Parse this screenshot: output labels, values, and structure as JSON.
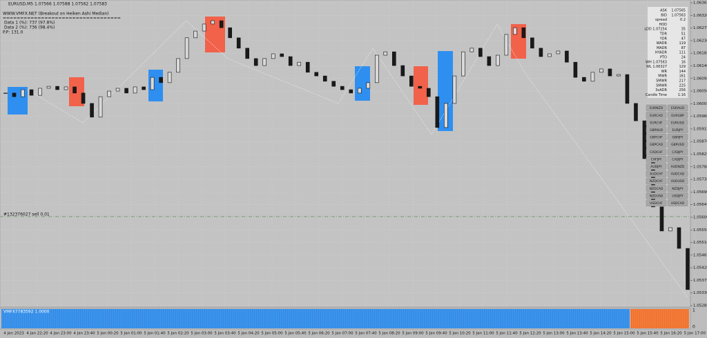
{
  "header": {
    "symbol": "EURUSD,M5 1.07566 1.07588 1.07562 1.07583",
    "indicator": "WWW.VMFX.NET (Breakout on Heiken Ashi Median)",
    "separator": "==================================",
    "data1": "Data 1 (%): 737 (97.8%)",
    "data2": "Data 2 (%): 736 (98.4%)",
    "pp": "P.P: 131.0"
  },
  "order_line": "#132376027 sell 0.01",
  "sub_window": {
    "label": "VMFX7783592 1.0000",
    "top": "1",
    "bottom": "0"
  },
  "panel": {
    "rows": [
      [
        "ASK",
        "1.07565"
      ],
      [
        "BID",
        "1.07563"
      ],
      [
        "spread",
        "0.2"
      ],
      [
        "HOD",
        ""
      ],
      [
        "LOD 1.07254",
        "35"
      ],
      [
        "TDR",
        "51"
      ],
      [
        "YDR",
        "47"
      ],
      [
        "WADR",
        "119"
      ],
      [
        "MADR",
        "87"
      ],
      [
        "HYADR",
        "111"
      ],
      [
        "PTO",
        "24"
      ],
      [
        "WH 1.07563",
        "16"
      ],
      [
        "WL 1.06327",
        "129"
      ],
      [
        "WR",
        "144"
      ],
      [
        "MWR",
        "161"
      ],
      [
        "SMWR",
        "217"
      ],
      [
        "SMWR",
        "225"
      ],
      [
        "3xADR",
        "256"
      ],
      [
        "Candle Time",
        "1:16"
      ]
    ]
  },
  "buttons": [
    [
      "EURNZD",
      "EURAUD"
    ],
    [
      "EURCAD",
      "EURGBP"
    ],
    [
      "EURCHF",
      "EURUSD"
    ],
    [
      "GBPAUD",
      "EURJPY"
    ],
    [
      "GBPCHF",
      "GBPJPY"
    ],
    [
      "GBPCAD",
      "GBPUSD"
    ],
    [
      "CADCHF",
      "CADJPY"
    ],
    [
      "CHFJPY",
      "CADJPY"
    ],
    [
      "AUDJPY",
      "AUDNZD"
    ],
    [
      "AUDCHF",
      "AUDCAD"
    ],
    [
      "NZDCHF",
      "AUDUSD"
    ],
    [
      "NZDCAD",
      "NZDJPY"
    ],
    [
      "NZDUSD",
      "USDJPY"
    ],
    [
      "USDCHF",
      "USDCAD"
    ]
  ],
  "chart_data": {
    "type": "candlestick",
    "x": [
      "4 Jan 2023",
      "4 Jan 22:20",
      "4 Jan 23:00",
      "4 Jan 23:40",
      "5 Jan 00:20",
      "5 Jan 01:00",
      "5 Jan 01:40",
      "5 Jan 02:20",
      "5 Jan 03:00",
      "5 Jan 03:40",
      "5 Jan 04:20",
      "5 Jan 05:00",
      "5 Jan 05:40",
      "5 Jan 06:20",
      "5 Jan 07:00",
      "5 Jan 07:40",
      "5 Jan 08:20",
      "5 Jan 09:00",
      "5 Jan 09:40",
      "5 Jan 10:20",
      "5 Jan 11:00",
      "5 Jan 11:40",
      "5 Jan 12:20",
      "5 Jan 13:00",
      "5 Jan 13:40",
      "5 Jan 14:20",
      "5 Jan 15:00",
      "5 Jan 15:40",
      "5 Jan 16:20",
      "5 Jan 17:00"
    ],
    "closes": [
      1.06043,
      1.0603,
      1.06055,
      1.06035,
      1.0606,
      1.06067,
      1.06055,
      1.06065,
      1.06043,
      1.06006,
      1.05957,
      1.0603,
      1.0605,
      1.0606,
      1.06043,
      1.06065,
      1.06055,
      1.06099,
      1.0608,
      1.06117,
      1.06166,
      1.0624,
      1.06264,
      1.06289,
      1.06301,
      1.06276,
      1.0624,
      1.06203,
      1.06166,
      1.06141,
      1.06166,
      1.06183,
      1.06173,
      1.06141,
      1.06153,
      1.06117,
      1.06104,
      1.06085,
      1.06067,
      1.06055,
      1.06043,
      1.0606,
      1.0608,
      1.06178,
      1.0619,
      1.06141,
      1.06104,
      1.06067,
      1.0606,
      1.0603,
      1.0592,
      1.06006,
      1.06104,
      1.0619,
      1.06203,
      1.06173,
      1.06141,
      1.06178,
      1.06252,
      1.06276,
      1.0624,
      1.06203,
      1.06173,
      1.06183,
      1.06193,
      1.06153,
      1.06099,
      1.06085,
      1.06117,
      1.06129,
      1.06104,
      1.06109,
      1.06006,
      1.05944,
      1.05809,
      1.05637,
      1.05551,
      1.05563,
      1.05489,
      1.05342
    ],
    "color_up": "#d9d9d9",
    "color_down": "#1a1a1a",
    "ylim": [
      1.05285,
      1.06365
    ],
    "yticks": [
      1.05285,
      {
        "value": 1.0533,
        "label": "1.05330"
      },
      1.05375,
      {
        "value": 1.0542,
        "label": "1.05420"
      },
      1.05465,
      {
        "value": 1.0551,
        "label": "1.05510"
      },
      1.05555,
      {
        "value": 1.056,
        "label": "1.05600"
      },
      1.05645,
      {
        "value": 1.0569,
        "label": "1.05690"
      },
      1.05735,
      {
        "value": 1.0578,
        "label": "1.05780"
      },
      1.05825,
      {
        "value": 1.0587,
        "label": "1.05870"
      },
      1.05915,
      {
        "value": 1.0596,
        "label": "1.05960"
      },
      1.06005,
      {
        "value": 1.0605,
        "label": "1.06050"
      },
      1.06095,
      {
        "value": 1.0614,
        "label": "1.06140"
      },
      1.06185,
      {
        "value": 1.0623,
        "label": "1.06230"
      },
      1.06275,
      {
        "value": 1.0632,
        "label": "1.06320"
      },
      1.06365
    ],
    "grid": true
  }
}
